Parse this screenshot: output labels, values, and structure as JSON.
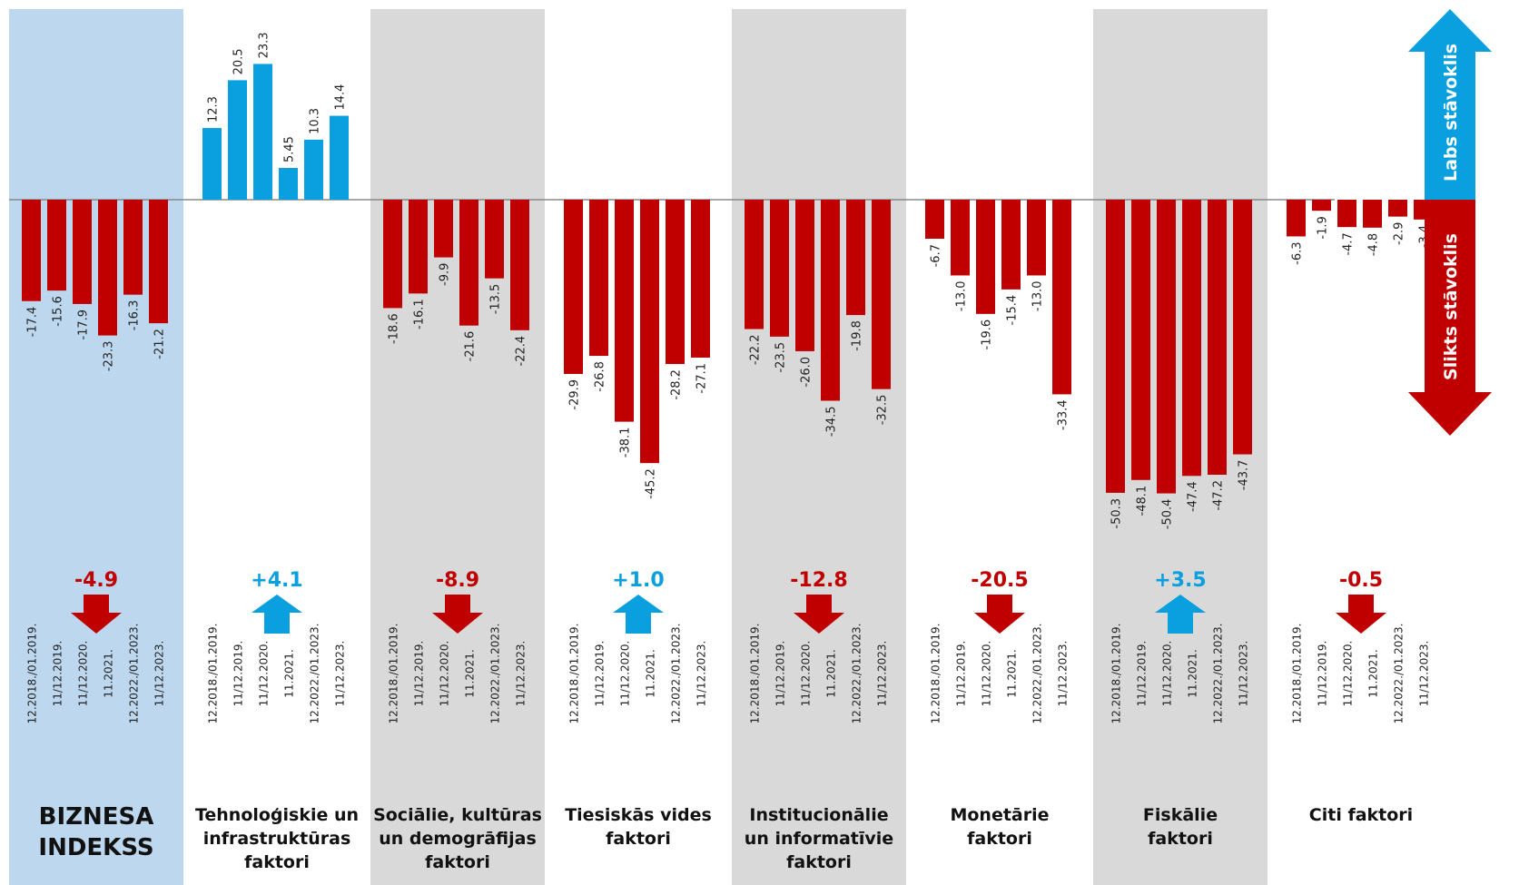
{
  "colors": {
    "negative": "#c00000",
    "positive": "#0aa0e0",
    "panel_index": "#bdd7ee",
    "panel_alt": "#d9d9d9"
  },
  "side_arrows": {
    "good_label": "Labs stāvoklis",
    "bad_label": "Slikts stāvoklis"
  },
  "chart_data": {
    "type": "bar",
    "periods": [
      "12.2018./01.2019.",
      "11/12.2019.",
      "11/12.2020.",
      "11.2021.",
      "12.2022./01.2023.",
      "11/12.2023."
    ],
    "groups": [
      {
        "label": "BIZNESA\nINDEKSS",
        "shade": "index",
        "values": [
          -17.4,
          -15.6,
          -17.9,
          -23.3,
          -16.3,
          -21.2
        ],
        "value_labels": [
          "-17.4",
          "-15.6",
          "-17.9",
          "-23.3",
          "-16.3",
          "-21.2"
        ],
        "change": "-4.9",
        "direction": "down"
      },
      {
        "label": "Tehnoloģiskie un\ninfrastruktūras\nfaktori",
        "shade": "none",
        "values": [
          12.3,
          20.5,
          23.3,
          5.45,
          10.3,
          14.4
        ],
        "value_labels": [
          "12.3",
          "20.5",
          "23.3",
          "5.45",
          "10.3",
          "14.4"
        ],
        "change": "+4.1",
        "direction": "up"
      },
      {
        "label": "Sociālie, kultūras\nun demogrāfijas\nfaktori",
        "shade": "alt",
        "values": [
          -18.6,
          -16.1,
          -9.9,
          -21.6,
          -13.5,
          -22.4
        ],
        "value_labels": [
          "-18.6",
          "-16.1",
          "-9.9",
          "-21.6",
          "-13.5",
          "-22.4"
        ],
        "change": "-8.9",
        "direction": "down"
      },
      {
        "label": "Tiesiskās vides\nfaktori",
        "shade": "none",
        "values": [
          -29.9,
          -26.8,
          -38.1,
          -45.2,
          -28.2,
          -27.1
        ],
        "value_labels": [
          "-29.9",
          "-26.8",
          "-38.1",
          "-45.2",
          "-28.2",
          "-27.1"
        ],
        "change": "+1.0",
        "direction": "up"
      },
      {
        "label": "Institucionālie\nun informatīvie\nfaktori",
        "shade": "alt",
        "values": [
          -22.2,
          -23.5,
          -26.0,
          -34.5,
          -19.8,
          -32.5
        ],
        "value_labels": [
          "-22.2",
          "-23.5",
          "-26.0",
          "-34.5",
          "-19.8",
          "-32.5"
        ],
        "change": "-12.8",
        "direction": "down"
      },
      {
        "label": "Monetārie\nfaktori",
        "shade": "none",
        "values": [
          -6.7,
          -13.0,
          -19.6,
          -15.4,
          -13.0,
          -33.4
        ],
        "value_labels": [
          "-6.7",
          "-13.0",
          "-19.6",
          "-15.4",
          "-13.0",
          "-33.4"
        ],
        "change": "-20.5",
        "direction": "down"
      },
      {
        "label": "Fiskālie\nfaktori",
        "shade": "alt",
        "values": [
          -50.3,
          -48.1,
          -50.4,
          -47.4,
          -47.2,
          -43.7
        ],
        "value_labels": [
          "-50.3",
          "-48.1",
          "-50.4",
          "-47.4",
          "-47.2",
          "-43.7"
        ],
        "change": "+3.5",
        "direction": "up"
      },
      {
        "label": "Citi faktori",
        "shade": "none",
        "values": [
          -6.3,
          -1.9,
          -4.7,
          -4.8,
          -2.9,
          -3.4
        ],
        "value_labels": [
          "-6.3",
          "-1.9",
          "-4.7",
          "-4.8",
          "-2.9",
          "-3.4"
        ],
        "change": "-0.5",
        "direction": "down"
      }
    ]
  }
}
